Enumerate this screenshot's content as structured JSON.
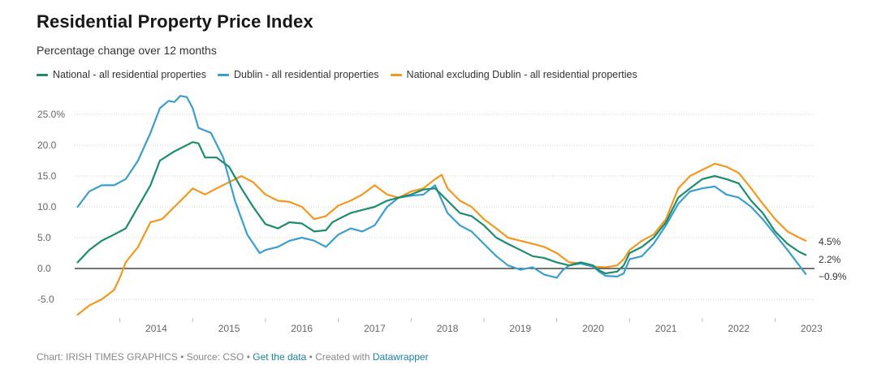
{
  "title": "Residential Property Price Index",
  "subtitle": "Percentage change over 12 months",
  "footer": {
    "chart_label": "Chart: IRISH TIMES GRAPHICS",
    "sep1": " • ",
    "source": "Source: CSO",
    "sep2": " • ",
    "get_data": "Get the data",
    "sep3": " • ",
    "created_with": "Created with ",
    "tool": "Datawrapper"
  },
  "chart_data": {
    "type": "line",
    "title": "Residential Property Price Index",
    "subtitle": "Percentage change over 12 months",
    "xlabel": "",
    "ylabel": "",
    "xlim": [
      2013.38,
      2023.54
    ],
    "ylim": [
      -7.5,
      28.0
    ],
    "y_ticks": [
      25.0,
      20.0,
      15.0,
      10.0,
      5.0,
      0.0,
      -5.0
    ],
    "y_tick_labels": [
      "25.0%",
      "20.0",
      "15.0",
      "10.0",
      "5.0",
      "0.0",
      "-5.0"
    ],
    "x_ticks": [
      2014,
      2015,
      2016,
      2017,
      2018,
      2019,
      2020,
      2021,
      2022,
      2023
    ],
    "x_tick_labels": [
      "2014",
      "2015",
      "2016",
      "2017",
      "2018",
      "2019",
      "2020",
      "2021",
      "2022",
      "2023"
    ],
    "zero_line": true,
    "grid": "horizontal dotted",
    "legend_position": "top",
    "series": [
      {
        "name": "National - all residential properties",
        "color": "#1c8c6e",
        "end_label": "2.2%",
        "points": [
          [
            2013.42,
            1.0
          ],
          [
            2013.58,
            3.0
          ],
          [
            2013.75,
            4.5
          ],
          [
            2013.92,
            5.5
          ],
          [
            2014.08,
            6.5
          ],
          [
            2014.25,
            10.0
          ],
          [
            2014.42,
            13.5
          ],
          [
            2014.55,
            17.5
          ],
          [
            2014.75,
            19.0
          ],
          [
            2015.0,
            20.5
          ],
          [
            2015.08,
            20.3
          ],
          [
            2015.17,
            18.0
          ],
          [
            2015.33,
            18.0
          ],
          [
            2015.5,
            16.5
          ],
          [
            2015.67,
            13.0
          ],
          [
            2015.83,
            10.0
          ],
          [
            2016.0,
            7.2
          ],
          [
            2016.17,
            6.5
          ],
          [
            2016.33,
            7.5
          ],
          [
            2016.5,
            7.3
          ],
          [
            2016.67,
            6.0
          ],
          [
            2016.83,
            6.2
          ],
          [
            2016.92,
            7.5
          ],
          [
            2017.0,
            8.0
          ],
          [
            2017.17,
            9.0
          ],
          [
            2017.33,
            9.5
          ],
          [
            2017.5,
            10.0
          ],
          [
            2017.67,
            11.0
          ],
          [
            2017.83,
            11.5
          ],
          [
            2018.0,
            12.0
          ],
          [
            2018.17,
            12.8
          ],
          [
            2018.33,
            13.0
          ],
          [
            2018.5,
            11.0
          ],
          [
            2018.67,
            9.0
          ],
          [
            2018.83,
            8.5
          ],
          [
            2019.0,
            7.0
          ],
          [
            2019.17,
            5.0
          ],
          [
            2019.33,
            4.0
          ],
          [
            2019.5,
            3.0
          ],
          [
            2019.67,
            2.0
          ],
          [
            2019.83,
            1.7
          ],
          [
            2020.0,
            1.0
          ],
          [
            2020.17,
            0.5
          ],
          [
            2020.33,
            1.0
          ],
          [
            2020.5,
            0.5
          ],
          [
            2020.58,
            -0.3
          ],
          [
            2020.67,
            -0.8
          ],
          [
            2020.83,
            -0.5
          ],
          [
            2020.92,
            0.5
          ],
          [
            2021.0,
            2.5
          ],
          [
            2021.17,
            3.5
          ],
          [
            2021.33,
            5.0
          ],
          [
            2021.5,
            7.5
          ],
          [
            2021.67,
            11.5
          ],
          [
            2021.83,
            13.0
          ],
          [
            2022.0,
            14.5
          ],
          [
            2022.17,
            15.0
          ],
          [
            2022.33,
            14.5
          ],
          [
            2022.5,
            13.8
          ],
          [
            2022.67,
            11.0
          ],
          [
            2022.83,
            9.0
          ],
          [
            2023.0,
            6.0
          ],
          [
            2023.17,
            4.0
          ],
          [
            2023.33,
            2.7
          ],
          [
            2023.42,
            2.2
          ]
        ]
      },
      {
        "name": "Dublin - all residential properties",
        "color": "#3a9fcf",
        "end_label": "−0.9%",
        "points": [
          [
            2013.42,
            10.0
          ],
          [
            2013.58,
            12.5
          ],
          [
            2013.75,
            13.5
          ],
          [
            2013.92,
            13.5
          ],
          [
            2014.08,
            14.5
          ],
          [
            2014.25,
            17.5
          ],
          [
            2014.42,
            22.0
          ],
          [
            2014.55,
            26.0
          ],
          [
            2014.67,
            27.2
          ],
          [
            2014.75,
            27.0
          ],
          [
            2014.83,
            28.0
          ],
          [
            2014.92,
            27.8
          ],
          [
            2015.0,
            26.0
          ],
          [
            2015.08,
            22.8
          ],
          [
            2015.25,
            22.0
          ],
          [
            2015.42,
            18.0
          ],
          [
            2015.58,
            11.0
          ],
          [
            2015.75,
            5.5
          ],
          [
            2015.92,
            2.5
          ],
          [
            2016.0,
            3.0
          ],
          [
            2016.17,
            3.5
          ],
          [
            2016.33,
            4.5
          ],
          [
            2016.5,
            5.0
          ],
          [
            2016.67,
            4.5
          ],
          [
            2016.83,
            3.5
          ],
          [
            2017.0,
            5.5
          ],
          [
            2017.17,
            6.5
          ],
          [
            2017.33,
            6.0
          ],
          [
            2017.5,
            7.0
          ],
          [
            2017.67,
            10.0
          ],
          [
            2017.83,
            11.5
          ],
          [
            2018.0,
            11.8
          ],
          [
            2018.17,
            12.0
          ],
          [
            2018.33,
            13.5
          ],
          [
            2018.5,
            9.0
          ],
          [
            2018.67,
            7.0
          ],
          [
            2018.83,
            6.0
          ],
          [
            2019.0,
            4.0
          ],
          [
            2019.17,
            2.0
          ],
          [
            2019.33,
            0.5
          ],
          [
            2019.5,
            -0.2
          ],
          [
            2019.67,
            0.2
          ],
          [
            2019.83,
            -1.0
          ],
          [
            2020.0,
            -1.5
          ],
          [
            2020.08,
            -0.3
          ],
          [
            2020.17,
            0.5
          ],
          [
            2020.33,
            0.8
          ],
          [
            2020.5,
            0.3
          ],
          [
            2020.58,
            -0.5
          ],
          [
            2020.67,
            -1.2
          ],
          [
            2020.83,
            -1.3
          ],
          [
            2020.92,
            -0.8
          ],
          [
            2021.0,
            1.5
          ],
          [
            2021.17,
            2.0
          ],
          [
            2021.33,
            4.0
          ],
          [
            2021.5,
            7.0
          ],
          [
            2021.67,
            10.5
          ],
          [
            2021.83,
            12.5
          ],
          [
            2022.0,
            13.0
          ],
          [
            2022.17,
            13.3
          ],
          [
            2022.33,
            12.0
          ],
          [
            2022.5,
            11.5
          ],
          [
            2022.67,
            10.0
          ],
          [
            2022.83,
            8.0
          ],
          [
            2023.0,
            5.5
          ],
          [
            2023.17,
            3.0
          ],
          [
            2023.33,
            0.5
          ],
          [
            2023.42,
            -0.9
          ]
        ]
      },
      {
        "name": "National excluding Dublin - all residential properties",
        "color": "#f3981f",
        "end_label": "4.5%",
        "points": [
          [
            2013.42,
            -7.5
          ],
          [
            2013.58,
            -6.0
          ],
          [
            2013.75,
            -5.0
          ],
          [
            2013.92,
            -3.5
          ],
          [
            2014.0,
            -1.5
          ],
          [
            2014.08,
            1.0
          ],
          [
            2014.25,
            3.5
          ],
          [
            2014.42,
            7.5
          ],
          [
            2014.58,
            8.0
          ],
          [
            2014.75,
            10.0
          ],
          [
            2014.92,
            12.0
          ],
          [
            2015.0,
            13.0
          ],
          [
            2015.17,
            12.0
          ],
          [
            2015.33,
            13.0
          ],
          [
            2015.5,
            14.0
          ],
          [
            2015.67,
            15.0
          ],
          [
            2015.83,
            14.0
          ],
          [
            2016.0,
            12.0
          ],
          [
            2016.17,
            11.0
          ],
          [
            2016.33,
            10.8
          ],
          [
            2016.5,
            10.0
          ],
          [
            2016.67,
            8.0
          ],
          [
            2016.83,
            8.5
          ],
          [
            2017.0,
            10.2
          ],
          [
            2017.17,
            11.0
          ],
          [
            2017.33,
            12.0
          ],
          [
            2017.5,
            13.5
          ],
          [
            2017.67,
            12.0
          ],
          [
            2017.83,
            11.5
          ],
          [
            2018.0,
            12.5
          ],
          [
            2018.17,
            13.0
          ],
          [
            2018.33,
            14.5
          ],
          [
            2018.42,
            15.2
          ],
          [
            2018.5,
            13.0
          ],
          [
            2018.67,
            11.0
          ],
          [
            2018.83,
            10.0
          ],
          [
            2019.0,
            8.0
          ],
          [
            2019.17,
            6.5
          ],
          [
            2019.33,
            5.0
          ],
          [
            2019.5,
            4.5
          ],
          [
            2019.67,
            4.0
          ],
          [
            2019.83,
            3.5
          ],
          [
            2020.0,
            2.5
          ],
          [
            2020.17,
            1.0
          ],
          [
            2020.33,
            0.8
          ],
          [
            2020.5,
            0.3
          ],
          [
            2020.67,
            0.2
          ],
          [
            2020.83,
            0.5
          ],
          [
            2020.92,
            1.5
          ],
          [
            2021.0,
            3.0
          ],
          [
            2021.17,
            4.5
          ],
          [
            2021.33,
            5.5
          ],
          [
            2021.5,
            8.0
          ],
          [
            2021.67,
            13.0
          ],
          [
            2021.83,
            15.0
          ],
          [
            2022.0,
            16.0
          ],
          [
            2022.17,
            17.0
          ],
          [
            2022.33,
            16.5
          ],
          [
            2022.5,
            15.5
          ],
          [
            2022.67,
            13.0
          ],
          [
            2022.83,
            10.5
          ],
          [
            2023.0,
            8.0
          ],
          [
            2023.17,
            6.0
          ],
          [
            2023.33,
            5.0
          ],
          [
            2023.42,
            4.5
          ]
        ]
      }
    ]
  }
}
